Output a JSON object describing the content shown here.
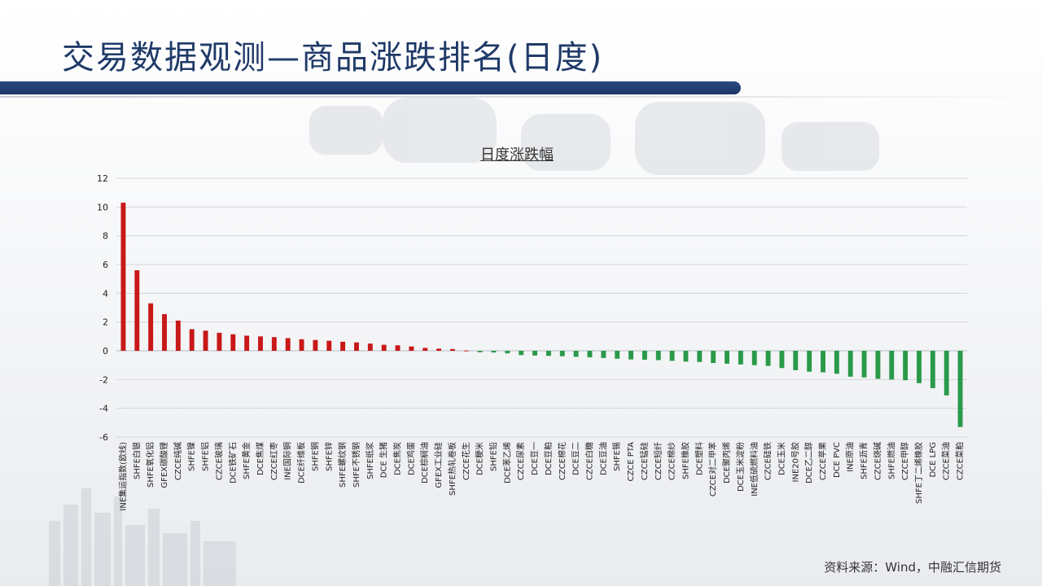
{
  "page": {
    "title": "交易数据观测—商品涨跌排名(日度)",
    "source": "资料来源：Wind，中融汇信期货"
  },
  "colors": {
    "accent": "#1f3a68",
    "rise": "#c81818",
    "fall": "#2a9a4a"
  },
  "chart_data": {
    "type": "bar",
    "title": "日度涨跌幅",
    "xlabel": "",
    "ylabel": "",
    "ylim": [
      -6,
      12
    ],
    "yticks": [
      12,
      10,
      8,
      6,
      4,
      2,
      0,
      -2,
      -4,
      -6
    ],
    "grid": true,
    "categories": [
      "INE集运指数(欧线)",
      "SHFE白银",
      "SHFE氧化铝",
      "GFEX碳酸锂",
      "CZCE纯碱",
      "SHFE镍",
      "SHFE铝",
      "CZCE玻璃",
      "DCE铁矿石",
      "SHFE黄金",
      "DCE焦煤",
      "CZCE红枣",
      "INE国际铜",
      "DCE纤维板",
      "SHFE铜",
      "SHFE锌",
      "SHFE螺纹钢",
      "SHFE不锈钢",
      "SHFE纸浆",
      "DCE 生猪",
      "DCE焦炭",
      "DCE鸡蛋",
      "DCE棕榈油",
      "GFEX工业硅",
      "SHFE热轧卷板",
      "CZCE花生",
      "DCE粳米",
      "SHFE铅",
      "DCE苯乙烯",
      "CZCE尿素",
      "DCE豆一",
      "DCE豆粕",
      "CZCE棉花",
      "DCE豆二",
      "CZCE白糖",
      "DCE豆油",
      "SHFE锡",
      "CZCE PTA",
      "CZCE锰硅",
      "CZCE短纤",
      "CZCE棉纱",
      "SHFE橡胶",
      "DCE塑料",
      "CZCE对二甲苯",
      "DCE聚丙烯",
      "DCE玉米淀粉",
      "INE低硫燃料油",
      "CZCE硅铁",
      "DCE玉米",
      "INE20号胶",
      "DCE乙二醇",
      "CZCE苹果",
      "DCE PVC",
      "INE原油",
      "SHFE沥青",
      "CZCE烧碱",
      "SHFE燃油",
      "CZCE甲醇",
      "SHFE丁二烯橡胶",
      "DCE LPG",
      "CZCE菜油",
      "CZCE菜粕"
    ],
    "values": [
      10.3,
      5.6,
      3.3,
      2.55,
      2.1,
      1.5,
      1.4,
      1.25,
      1.15,
      1.05,
      1.0,
      0.95,
      0.88,
      0.8,
      0.75,
      0.7,
      0.63,
      0.58,
      0.5,
      0.42,
      0.38,
      0.3,
      0.2,
      0.15,
      0.12,
      0.02,
      -0.1,
      -0.12,
      -0.18,
      -0.3,
      -0.33,
      -0.35,
      -0.38,
      -0.42,
      -0.45,
      -0.5,
      -0.55,
      -0.6,
      -0.62,
      -0.65,
      -0.7,
      -0.75,
      -0.78,
      -0.85,
      -0.9,
      -0.95,
      -1.0,
      -1.05,
      -1.2,
      -1.35,
      -1.45,
      -1.5,
      -1.6,
      -1.8,
      -1.85,
      -1.95,
      -2.0,
      -2.05,
      -2.25,
      -2.6,
      -3.1,
      -5.3
    ]
  }
}
